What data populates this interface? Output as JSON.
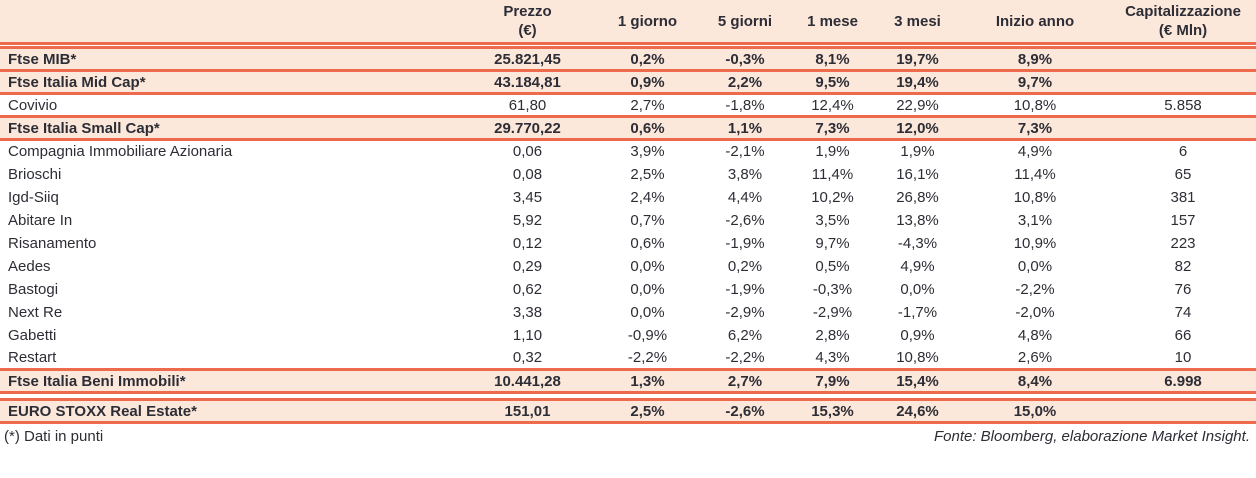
{
  "colors": {
    "accent": "#ee6a4c",
    "highlight_row_bg": "#fce8db",
    "text": "#2d2d36"
  },
  "header": {
    "name": "",
    "prezzo": [
      "Prezzo",
      "(€)"
    ],
    "d1": "1 giorno",
    "d5": "5 giorni",
    "m1": "1 mese",
    "m3": "3 mesi",
    "ytd": "Inizio anno",
    "cap": [
      "Capitalizzazione",
      "(€ Mln)"
    ]
  },
  "footer": {
    "note": "(*) Dati in punti",
    "source": "Fonte: Bloomberg, elaborazione Market Insight."
  },
  "chart_data": {
    "type": "table",
    "columns": [
      "",
      "Prezzo (€)",
      "1 giorno",
      "5 giorni",
      "1 mese",
      "3 mesi",
      "Inizio anno",
      "Capitalizzazione (€ Mln)"
    ],
    "rows": [
      {
        "cells": [
          "Ftse MIB*",
          "25.821,45",
          "0,2%",
          "-0,3%",
          "8,1%",
          "19,7%",
          "8,9%",
          ""
        ],
        "highlight": true,
        "gap_before": false
      },
      {
        "cells": [
          "Ftse Italia Mid Cap*",
          "43.184,81",
          "0,9%",
          "2,2%",
          "9,5%",
          "19,4%",
          "9,7%",
          ""
        ],
        "highlight": true,
        "gap_before": false
      },
      {
        "cells": [
          "Covivio",
          "61,80",
          "2,7%",
          "-1,8%",
          "12,4%",
          "22,9%",
          "10,8%",
          "5.858"
        ],
        "highlight": false,
        "gap_before": false
      },
      {
        "cells": [
          "Ftse Italia Small Cap*",
          "29.770,22",
          "0,6%",
          "1,1%",
          "7,3%",
          "12,0%",
          "7,3%",
          ""
        ],
        "highlight": true,
        "gap_before": false
      },
      {
        "cells": [
          "Compagnia Immobiliare Azionaria",
          "0,06",
          "3,9%",
          "-2,1%",
          "1,9%",
          "1,9%",
          "4,9%",
          "6"
        ],
        "highlight": false,
        "gap_before": false
      },
      {
        "cells": [
          "Brioschi",
          "0,08",
          "2,5%",
          "3,8%",
          "11,4%",
          "16,1%",
          "11,4%",
          "65"
        ],
        "highlight": false,
        "gap_before": false
      },
      {
        "cells": [
          "Igd-Siiq",
          "3,45",
          "2,4%",
          "4,4%",
          "10,2%",
          "26,8%",
          "10,8%",
          "381"
        ],
        "highlight": false,
        "gap_before": false
      },
      {
        "cells": [
          "Abitare In",
          "5,92",
          "0,7%",
          "-2,6%",
          "3,5%",
          "13,8%",
          "3,1%",
          "157"
        ],
        "highlight": false,
        "gap_before": false
      },
      {
        "cells": [
          "Risanamento",
          "0,12",
          "0,6%",
          "-1,9%",
          "9,7%",
          "-4,3%",
          "10,9%",
          "223"
        ],
        "highlight": false,
        "gap_before": false
      },
      {
        "cells": [
          "Aedes",
          "0,29",
          "0,0%",
          "0,2%",
          "0,5%",
          "4,9%",
          "0,0%",
          "82"
        ],
        "highlight": false,
        "gap_before": false
      },
      {
        "cells": [
          "Bastogi",
          "0,62",
          "0,0%",
          "-1,9%",
          "-0,3%",
          "0,0%",
          "-2,2%",
          "76"
        ],
        "highlight": false,
        "gap_before": false
      },
      {
        "cells": [
          "Next Re",
          "3,38",
          "0,0%",
          "-2,9%",
          "-2,9%",
          "-1,7%",
          "-2,0%",
          "74"
        ],
        "highlight": false,
        "gap_before": false
      },
      {
        "cells": [
          "Gabetti",
          "1,10",
          "-0,9%",
          "6,2%",
          "2,8%",
          "0,9%",
          "4,8%",
          "66"
        ],
        "highlight": false,
        "gap_before": false
      },
      {
        "cells": [
          "Restart",
          "0,32",
          "-2,2%",
          "-2,2%",
          "4,3%",
          "10,8%",
          "2,6%",
          "10"
        ],
        "highlight": false,
        "gap_before": false
      },
      {
        "cells": [
          "Ftse Italia Beni Immobili*",
          "10.441,28",
          "1,3%",
          "2,7%",
          "7,9%",
          "15,4%",
          "8,4%",
          "6.998"
        ],
        "highlight": true,
        "gap_before": false
      },
      {
        "cells": [
          "EURO STOXX Real Estate*",
          "151,01",
          "2,5%",
          "-2,6%",
          "15,3%",
          "24,6%",
          "15,0%",
          ""
        ],
        "highlight": true,
        "gap_before": true
      }
    ]
  }
}
